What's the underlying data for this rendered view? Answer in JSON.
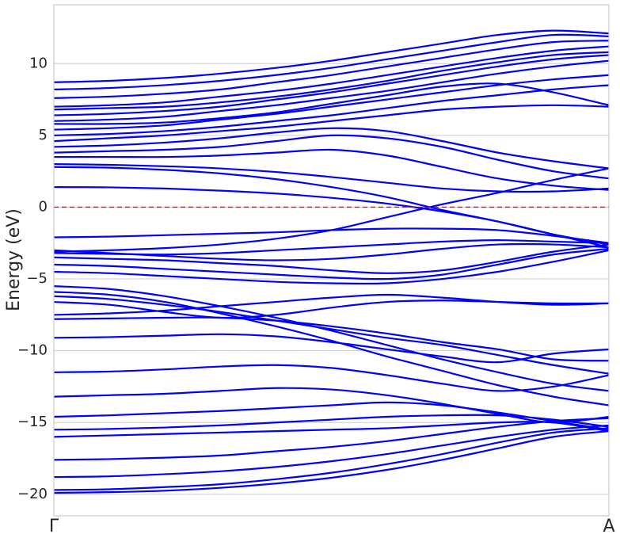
{
  "chart_data": {
    "type": "line",
    "ylabel": "Energy (eV)",
    "color": "blue",
    "x": [
      0,
      0.1,
      0.2,
      0.3,
      0.4,
      0.5,
      0.6,
      0.7,
      0.8,
      0.9,
      1
    ],
    "xlim": [
      0,
      1
    ],
    "xticks": [
      {
        "value": 0,
        "label": "Γ"
      },
      {
        "value": 1,
        "label": "A"
      }
    ],
    "ylim": [
      -21.5,
      14.1
    ],
    "yticks": [
      {
        "value": -20,
        "label": "−20"
      },
      {
        "value": -15,
        "label": "−15"
      },
      {
        "value": -10,
        "label": "−10"
      },
      {
        "value": -5,
        "label": "−5"
      },
      0,
      5,
      10
    ],
    "grid": true,
    "reference_line": {
      "y": 0,
      "color": "red",
      "style": "dashed"
    },
    "series": [
      {
        "values": [
          -19.9,
          -19.85,
          -19.75,
          -19.55,
          -19.25,
          -18.85,
          -18.3,
          -17.6,
          -16.8,
          -16.0,
          -15.6
        ]
      },
      {
        "values": [
          -19.7,
          -19.65,
          -19.5,
          -19.3,
          -18.95,
          -18.5,
          -17.9,
          -17.2,
          -16.4,
          -15.7,
          -15.4
        ]
      },
      {
        "values": [
          -18.8,
          -18.75,
          -18.6,
          -18.4,
          -18.1,
          -17.7,
          -17.2,
          -16.6,
          -16.0,
          -15.5,
          -15.2
        ]
      },
      {
        "values": [
          -17.6,
          -17.55,
          -17.45,
          -17.3,
          -17.0,
          -16.7,
          -16.3,
          -15.8,
          -15.3,
          -14.9,
          -14.7
        ]
      },
      {
        "values": [
          -16.0,
          -15.9,
          -15.8,
          -15.7,
          -15.6,
          -15.5,
          -15.4,
          -15.2,
          -15.0,
          -15.0,
          -15.6
        ]
      },
      {
        "values": [
          -15.5,
          -15.45,
          -15.35,
          -15.2,
          -15.0,
          -14.8,
          -14.6,
          -14.5,
          -14.5,
          -14.8,
          -15.3
        ]
      },
      {
        "values": [
          -14.6,
          -14.5,
          -14.35,
          -14.2,
          -14.0,
          -13.8,
          -13.6,
          -13.8,
          -14.3,
          -14.9,
          -15.5
        ]
      },
      {
        "values": [
          -13.2,
          -13.1,
          -13.0,
          -12.8,
          -12.6,
          -12.7,
          -13.1,
          -13.7,
          -14.4,
          -15.0,
          -14.6
        ]
      },
      {
        "values": [
          -11.5,
          -11.45,
          -11.3,
          -11.1,
          -11.0,
          -11.2,
          -11.7,
          -12.3,
          -12.8,
          -12.5,
          -11.7
        ]
      },
      {
        "values": [
          -9.1,
          -9.05,
          -8.95,
          -8.85,
          -9.0,
          -9.4,
          -9.9,
          -10.4,
          -10.8,
          -10.2,
          -9.9
        ]
      },
      {
        "values": [
          -7.8,
          -7.75,
          -7.7,
          -7.7,
          -7.9,
          -8.3,
          -8.8,
          -9.4,
          -9.9,
          -10.6,
          -10.7
        ]
      },
      {
        "values": [
          -7.5,
          -7.4,
          -7.2,
          -6.9,
          -6.6,
          -6.3,
          -6.1,
          -6.3,
          -6.6,
          -6.8,
          -6.7
        ]
      },
      {
        "values": [
          -6.2,
          -6.4,
          -6.8,
          -7.3,
          -7.9,
          -8.5,
          -9.1,
          -9.6,
          -10.3,
          -11.0,
          -11.6
        ]
      },
      {
        "values": [
          -5.5,
          -5.7,
          -6.2,
          -6.9,
          -7.7,
          -8.6,
          -9.6,
          -10.6,
          -11.5,
          -12.3,
          -12.8
        ]
      },
      {
        "values": [
          -5.9,
          -6.1,
          -6.6,
          -7.4,
          -8.3,
          -9.3,
          -10.4,
          -11.4,
          -12.4,
          -13.2,
          -13.8
        ]
      },
      {
        "values": [
          -6.6,
          -6.8,
          -7.3,
          -7.7,
          -7.5,
          -7.0,
          -6.6,
          -6.5,
          -6.6,
          -6.7,
          -6.7
        ]
      },
      {
        "values": [
          -4.5,
          -4.6,
          -4.8,
          -5.0,
          -5.2,
          -5.3,
          -5.3,
          -5.0,
          -4.5,
          -3.8,
          -3.0
        ]
      },
      {
        "values": [
          -4.0,
          -4.1,
          -4.3,
          -4.5,
          -4.7,
          -4.9,
          -5.0,
          -4.7,
          -4.0,
          -3.3,
          -2.9
        ]
      },
      {
        "values": [
          -3.5,
          -3.6,
          -3.7,
          -3.9,
          -4.1,
          -4.4,
          -4.6,
          -4.4,
          -3.8,
          -3.1,
          -2.6
        ]
      },
      {
        "values": [
          -3.2,
          -3.25,
          -3.3,
          -3.2,
          -3.0,
          -2.8,
          -2.6,
          -2.4,
          -2.3,
          -2.4,
          -2.5
        ]
      },
      {
        "values": [
          -3.0,
          -3.2,
          -3.4,
          -3.6,
          -3.7,
          -3.6,
          -3.3,
          -2.9,
          -2.6,
          -2.6,
          -2.8
        ]
      },
      {
        "values": [
          -2.1,
          -2.05,
          -1.95,
          -1.85,
          -1.75,
          -1.6,
          -1.5,
          -1.5,
          -1.6,
          -2.0,
          -2.5
        ]
      },
      {
        "values": [
          1.4,
          1.38,
          1.3,
          1.15,
          0.95,
          0.65,
          0.25,
          -0.3,
          -1.0,
          -1.9,
          -2.8
        ]
      },
      {
        "values": [
          2.8,
          2.75,
          2.6,
          2.35,
          1.95,
          1.4,
          0.7,
          -0.2,
          -1.0,
          -1.9,
          -2.6
        ]
      },
      {
        "values": [
          3.0,
          2.95,
          2.85,
          2.7,
          2.45,
          2.1,
          1.7,
          1.3,
          1.1,
          1.1,
          1.3
        ]
      },
      {
        "values": [
          -3.1,
          -3.0,
          -2.85,
          -2.6,
          -2.2,
          -1.6,
          -0.7,
          0.2,
          1.0,
          1.9,
          2.7
        ]
      },
      {
        "values": [
          3.5,
          3.5,
          3.5,
          3.6,
          3.8,
          4.0,
          3.6,
          2.8,
          2.0,
          1.5,
          1.2
        ]
      },
      {
        "values": [
          3.8,
          3.9,
          4.0,
          4.2,
          4.6,
          5.0,
          4.8,
          4.2,
          3.3,
          2.5,
          2.0
        ]
      },
      {
        "values": [
          4.2,
          4.3,
          4.5,
          4.8,
          5.2,
          5.5,
          5.3,
          4.6,
          3.8,
          3.2,
          2.7
        ]
      },
      {
        "values": [
          4.6,
          4.8,
          5.0,
          5.3,
          5.6,
          6.0,
          6.4,
          6.8,
          7.0,
          7.1,
          7.0
        ]
      },
      {
        "values": [
          5.0,
          5.1,
          5.3,
          5.6,
          6.0,
          6.4,
          6.9,
          7.4,
          7.8,
          8.2,
          8.5
        ]
      },
      {
        "values": [
          5.4,
          5.5,
          5.7,
          6.1,
          6.5,
          7.0,
          7.5,
          8.0,
          8.5,
          8.9,
          9.2
        ]
      },
      {
        "values": [
          6.0,
          6.1,
          6.3,
          6.7,
          7.1,
          7.6,
          8.1,
          8.7,
          9.3,
          9.8,
          10.2
        ]
      },
      {
        "values": [
          6.4,
          6.5,
          6.7,
          7.0,
          7.5,
          8.0,
          8.6,
          9.2,
          9.8,
          10.3,
          10.6
        ]
      },
      {
        "values": [
          7.0,
          7.1,
          7.3,
          7.7,
          8.1,
          8.6,
          9.2,
          9.8,
          10.4,
          10.9,
          11.2
        ]
      },
      {
        "values": [
          7.6,
          7.7,
          7.9,
          8.2,
          8.7,
          9.2,
          9.8,
          10.4,
          11.0,
          11.5,
          11.6
        ]
      },
      {
        "values": [
          8.2,
          8.3,
          8.5,
          8.8,
          9.2,
          9.7,
          10.3,
          10.9,
          11.5,
          12.0,
          11.9
        ]
      },
      {
        "values": [
          8.7,
          8.8,
          9.0,
          9.3,
          9.7,
          10.2,
          10.8,
          11.4,
          12.0,
          12.3,
          12.1
        ]
      },
      {
        "values": [
          5.8,
          5.8,
          5.9,
          6.2,
          6.6,
          7.2,
          7.8,
          8.4,
          8.6,
          8.0,
          7.1
        ]
      },
      {
        "values": [
          6.8,
          6.9,
          7.0,
          7.3,
          7.7,
          8.2,
          8.8,
          9.5,
          10.1,
          10.6,
          10.8
        ]
      }
    ]
  }
}
